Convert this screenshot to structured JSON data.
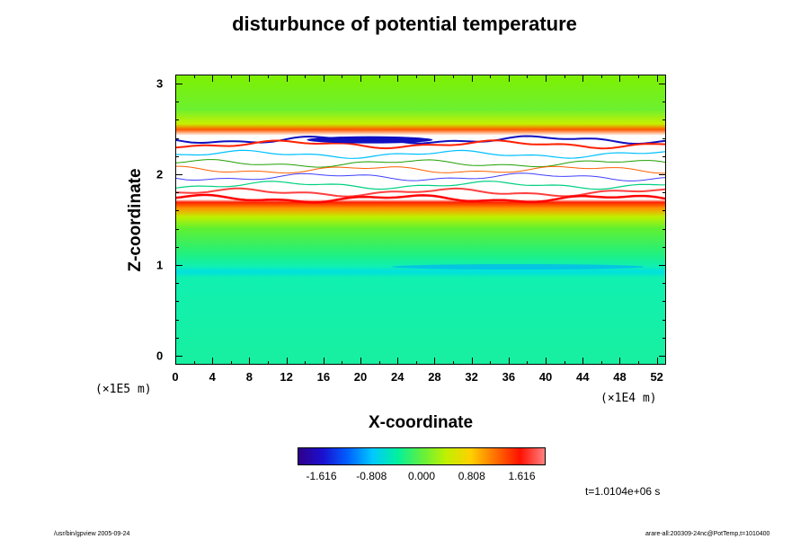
{
  "title": "disturbunce of potential temperature",
  "x_axis": {
    "label": "X-coordinate",
    "units": "(×1E4 m)",
    "ticks": [
      "0",
      "4",
      "8",
      "12",
      "16",
      "20",
      "24",
      "28",
      "32",
      "36",
      "40",
      "44",
      "48",
      "52"
    ]
  },
  "y_axis": {
    "label": "Z-coordinate",
    "units": "(×1E5 m)",
    "ticks": [
      "0",
      "1",
      "2",
      "3"
    ]
  },
  "colorbar": {
    "ticks": [
      "-1.616",
      "-0.808",
      "0.000",
      "0.808",
      "1.616"
    ],
    "colors": [
      "#30008a",
      "#1a10d0",
      "#0060ff",
      "#00c8ff",
      "#00f0a0",
      "#60f040",
      "#c0f000",
      "#ffd000",
      "#ff7000",
      "#ff1000",
      "#ff8080"
    ]
  },
  "time_label": "t=1.0104e+06 s",
  "footer": {
    "left": "/usr/bin/gpview 2005-09-24",
    "right": "arare-all:200309-24nc@PotTemp,t=1010400"
  },
  "chart_data": {
    "type": "heatmap",
    "title": "disturbunce of potential temperature",
    "xlabel": "X-coordinate",
    "ylabel": "Z-coordinate",
    "x_units": "×1E4 m",
    "y_units": "×1E5 m",
    "xlim": [
      0,
      53
    ],
    "ylim": [
      -0.1,
      3.1
    ],
    "color_range": [
      -2.0,
      2.0
    ],
    "colorbar_ticks": [
      -1.616,
      -0.808,
      0.0,
      0.808,
      1.616
    ],
    "layers": [
      {
        "z": [
          2.5,
          3.1
        ],
        "value": 0.6
      },
      {
        "z": [
          2.35,
          2.5
        ],
        "value": 1.5
      },
      {
        "z": [
          1.7,
          2.35
        ],
        "value": "out of range (blank)"
      },
      {
        "z": [
          1.6,
          1.7
        ],
        "value": 1.5
      },
      {
        "z": [
          1.0,
          1.6
        ],
        "value": 0.2
      },
      {
        "z": [
          0.9,
          1.0
        ],
        "value": -0.5
      },
      {
        "z": [
          -0.1,
          0.9
        ],
        "value": -0.1
      }
    ]
  }
}
